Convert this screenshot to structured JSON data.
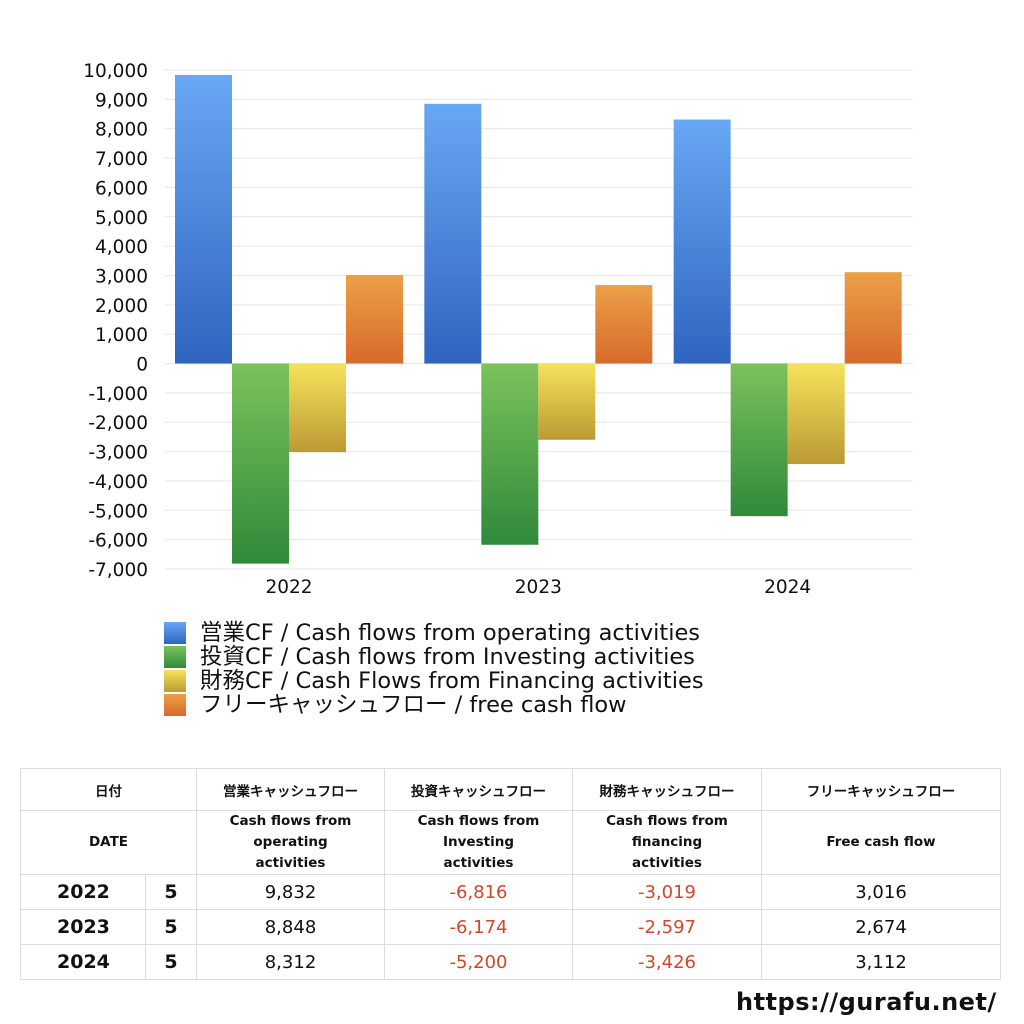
{
  "chart_data": {
    "type": "bar",
    "categories": [
      "2022",
      "2023",
      "2024"
    ],
    "series": [
      {
        "name": "営業CF / Cash flows from operating activities",
        "values": [
          9832,
          8848,
          8312
        ]
      },
      {
        "name": "投資CF / Cash flows from Investing activities",
        "values": [
          -6816,
          -6174,
          -5200
        ]
      },
      {
        "name": "財務CF / Cash Flows from Financing activities",
        "values": [
          -3019,
          -2597,
          -3426
        ]
      },
      {
        "name": "フリーキャッシュフロー / free cash flow",
        "values": [
          3016,
          2674,
          3112
        ]
      }
    ],
    "ylim": [
      -7000,
      10000
    ],
    "yticks": [
      "10,000",
      "9,000",
      "8,000",
      "7,000",
      "6,000",
      "5,000",
      "4,000",
      "3,000",
      "2,000",
      "1,000",
      "0",
      "-1,000",
      "-2,000",
      "-3,000",
      "-4,000",
      "-5,000",
      "-6,000",
      "-7,000"
    ],
    "grid": true,
    "legend_position": "bottom",
    "colors": [
      {
        "top": "#68a8f4",
        "bottom": "#2f64c0"
      },
      {
        "top": "#7cc25c",
        "bottom": "#2f8a3a"
      },
      {
        "top": "#f7e25a",
        "bottom": "#bb9a34"
      },
      {
        "top": "#eba048",
        "bottom": "#d86a2a"
      }
    ]
  },
  "table": {
    "headers_jp": [
      "日付",
      "営業キャッシュフロー",
      "投資キャッシュフロー",
      "財務キャッシュフロー",
      "フリーキャッシュフロー"
    ],
    "headers_en": [
      "DATE",
      "Cash flows from operating activities",
      "Cash flows from Investing activities",
      "Cash flows from financing activities",
      "Free cash flow"
    ],
    "rows": [
      {
        "year": "2022",
        "month": "5",
        "operating": "9,832",
        "investing": "-6,816",
        "financing": "-3,019",
        "free": "3,016"
      },
      {
        "year": "2023",
        "month": "5",
        "operating": "8,848",
        "investing": "-6,174",
        "financing": "-2,597",
        "free": "2,674"
      },
      {
        "year": "2024",
        "month": "5",
        "operating": "8,312",
        "investing": "-5,200",
        "financing": "-3,426",
        "free": "3,112"
      }
    ]
  },
  "footer": {
    "url": "https://gurafu.net/"
  }
}
